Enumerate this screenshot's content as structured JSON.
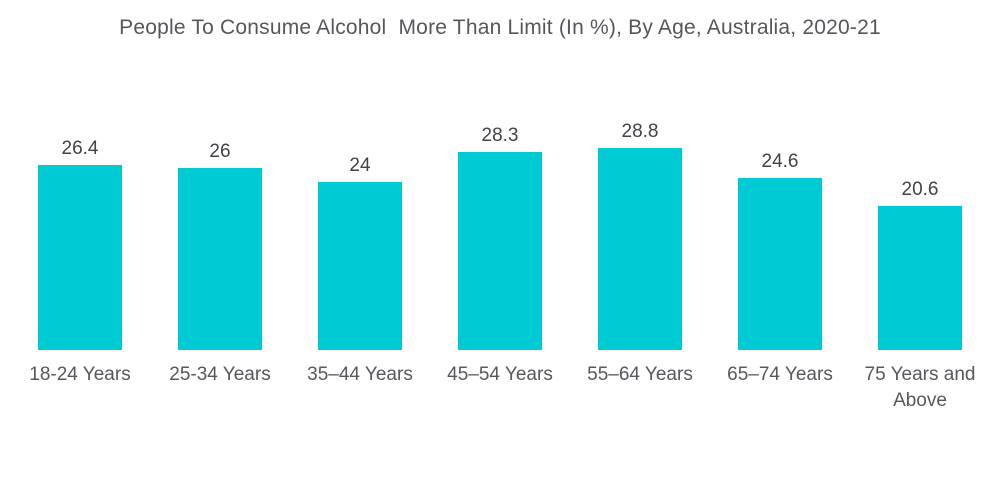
{
  "page": {
    "background_color": "#ffffff"
  },
  "chart_data": {
    "type": "bar",
    "title": "People To Consume Alcohol  More Than Limit (In %), By Age, Australia, 2020-21",
    "categories": [
      "18-24 Years",
      "25-34 Years",
      "35–44 Years",
      "45–54 Years",
      "55–64 Years",
      "65–74 Years",
      "75 Years and Above"
    ],
    "values": [
      26.4,
      26,
      24,
      28.3,
      28.8,
      24.6,
      20.6
    ],
    "unit": "%",
    "xlabel": "",
    "ylabel": "",
    "ylim": [
      0,
      30
    ],
    "grid": false,
    "legend_position": "none",
    "data_labels_position": "above-bars",
    "bar_color": "#00CBD5",
    "value_label_color": "#3f4347",
    "category_label_color": "#55585c",
    "title_color": "#54585c"
  }
}
